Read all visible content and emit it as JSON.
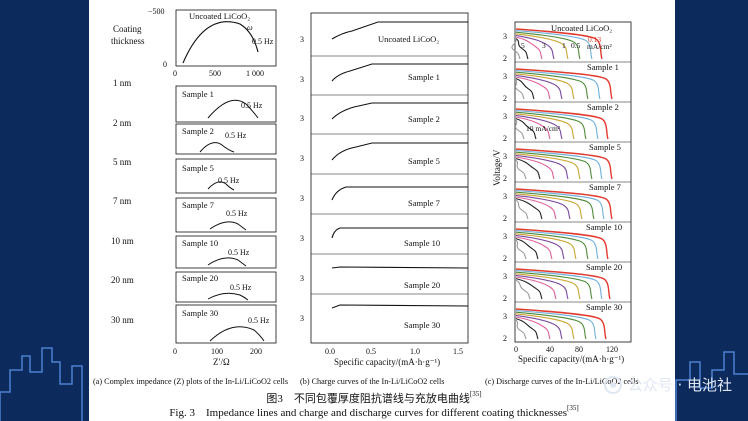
{
  "colors": {
    "background": "#0c2a5c",
    "skyline": "#4d7fd0",
    "paper": "#ffffff",
    "curve": "#111111",
    "red": "#e23a2f"
  },
  "left_panel": {
    "row_header": "Coating",
    "row_header2": "thickness",
    "rows": [
      "1 nm",
      "2 nm",
      "5 nm",
      "7 nm",
      "10 nm",
      "20 nm",
      "30 nm"
    ],
    "sample_labels": [
      "Uncoated LiCoO₂",
      "Sample 1",
      "Sample 2",
      "Sample 5",
      "Sample 7",
      "Sample 10",
      "Sample 20",
      "Sample 30"
    ],
    "freq_label": "0.5 Hz",
    "omega_label": "ω",
    "top_y_ticks": [
      "−500",
      "0"
    ],
    "top_x_ticks": [
      "0",
      "500",
      "1 000"
    ],
    "bottom_x_ticks": [
      "0",
      "100",
      "200"
    ],
    "x_label": "Z′/Ω",
    "caption": "(a) Complex impedance (Z) plots of the In-Li/LiCoO2 cells"
  },
  "middle_panel": {
    "sample_labels": [
      "Uncoated LiCoO₂",
      "Sample 1",
      "Sample 2",
      "Sample 5",
      "Sample 7",
      "Sample 10",
      "Sample 20",
      "Sample 30"
    ],
    "y_tick": "3",
    "x_ticks": [
      "0.0",
      "0.5",
      "1.0",
      "1.5"
    ],
    "x_label": "Specific capacity/(mA·h·g⁻¹)",
    "caption": "(b) Charge curves of the In-Li/LiCoO2 cells"
  },
  "right_panel": {
    "sample_labels": [
      "Uncoated LiCoO₂",
      "Sample 1",
      "Sample 2",
      "Sample 5",
      "Sample 7",
      "Sample 10",
      "Sample 20",
      "Sample 30"
    ],
    "y_ticks": [
      "3",
      "2"
    ],
    "y_label": "Voltage/V",
    "rate_labels_top": [
      "5",
      "3",
      "1",
      "0.5",
      "0.13",
      "mA/cm²"
    ],
    "rate_label_mid": "10 mA/cm²",
    "x_ticks": [
      "0",
      "40",
      "80",
      "120"
    ],
    "x_label": "Specific capacity/(mA·h·g⁻¹)",
    "caption": "(c) Discharge curves of the In-Li/LiCoO2 cells",
    "curve_colors": [
      "#e23a2f",
      "#6fb0dd",
      "#4f8b3a",
      "#c9a531",
      "#7b4aa0",
      "#e0609a",
      "#222222",
      "#9b9b9b"
    ]
  },
  "figure": {
    "caption_zh": "图3　不同包覆厚度阻抗谱线与充放电曲线",
    "caption_zh_ref": "[35]",
    "caption_en": "Fig. 3　Impedance lines and charge and discharge curves for different coating thicknesses",
    "caption_en_ref": "[35]"
  },
  "watermark": "公众号 · 电池社"
}
